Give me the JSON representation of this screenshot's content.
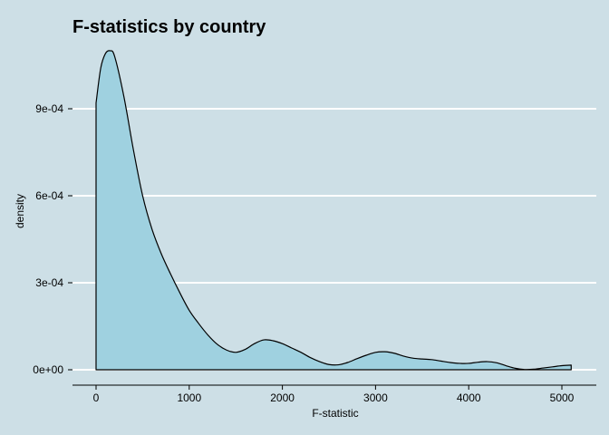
{
  "chart_data": {
    "type": "area",
    "title": "F-statistics by country",
    "xlabel": "F-statistic",
    "ylabel": "density",
    "xlim": [
      0,
      5100
    ],
    "ylim": [
      0,
      0.0011
    ],
    "x_ticks": [
      0,
      1000,
      2000,
      3000,
      4000,
      5000
    ],
    "x_tick_labels": [
      "0",
      "1000",
      "2000",
      "3000",
      "4000",
      "5000"
    ],
    "y_ticks": [
      0,
      0.0003,
      0.0006,
      0.0009
    ],
    "y_tick_labels": [
      "0e+00",
      "3e-04",
      "6e-04",
      "9e-04"
    ],
    "grid": "horizontal-major",
    "legend": "none",
    "colors": {
      "fill": "#9fd1e0",
      "line": "#000000",
      "grid": "#ffffff",
      "background": "#cddfe6"
    },
    "series": [
      {
        "x": [
          0,
          50,
          100,
          150,
          200,
          300,
          400,
          500,
          600,
          700,
          800,
          900,
          1000,
          1100,
          1200,
          1300,
          1400,
          1500,
          1600,
          1700,
          1800,
          1900,
          2000,
          2100,
          2200,
          2300,
          2400,
          2500,
          2600,
          2700,
          2800,
          2900,
          3000,
          3100,
          3200,
          3300,
          3400,
          3500,
          3600,
          3700,
          3800,
          3900,
          4000,
          4100,
          4200,
          4300,
          4400,
          4500,
          4600,
          4700,
          4800,
          4900,
          5000,
          5100
        ],
        "values": [
          0.00092,
          0.00104,
          0.00109,
          0.0011,
          0.00108,
          0.00094,
          0.00076,
          0.0006,
          0.000485,
          0.0004,
          0.00033,
          0.000265,
          0.000205,
          0.00016,
          0.00012,
          8.8e-05,
          6.8e-05,
          6e-05,
          7e-05,
          9e-05,
          0.000103,
          0.0001,
          9e-05,
          7.5e-05,
          6e-05,
          4.2e-05,
          2.8e-05,
          1.8e-05,
          1.7e-05,
          2.5e-05,
          3.8e-05,
          5e-05,
          6e-05,
          6.2e-05,
          5.7e-05,
          4.7e-05,
          4e-05,
          3.7e-05,
          3.5e-05,
          3e-05,
          2.5e-05,
          2.2e-05,
          2.2e-05,
          2.6e-05,
          2.8e-05,
          2.4e-05,
          1.4e-05,
          5e-06,
          1e-06,
          2e-06,
          6e-06,
          1e-05,
          1.4e-05,
          1.6e-05
        ]
      }
    ]
  }
}
